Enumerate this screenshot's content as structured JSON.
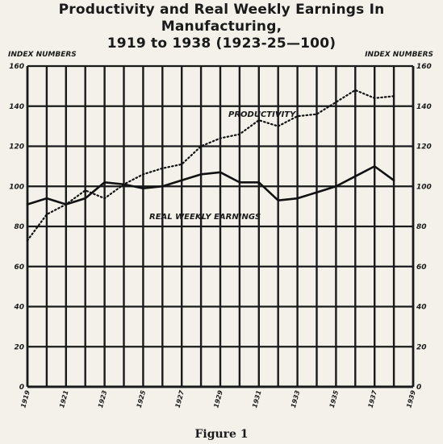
{
  "chart_data": {
    "type": "line",
    "title": "Productivity and Real Weekly Earnings In Manufacturing, 1919 to 1938 (1923-25—100)",
    "title_line1": "Productivity and Real Weekly Earnings In Manufacturing,",
    "title_line2": "1919 to 1938 (1923-25—100)",
    "ylabel_left": "INDEX NUMBERS",
    "ylabel_right": "INDEX NUMBERS",
    "ylim": [
      0,
      160
    ],
    "yticks": [
      0,
      20,
      40,
      60,
      80,
      100,
      120,
      140,
      160
    ],
    "xlim": [
      1919,
      1939
    ],
    "xticks": [
      "1919",
      "1921",
      "1923",
      "1925",
      "1927",
      "1929",
      "1931",
      "1933",
      "1935",
      "1937",
      "1939"
    ],
    "grid": true,
    "x": [
      1919,
      1920,
      1921,
      1922,
      1923,
      1924,
      1925,
      1926,
      1927,
      1928,
      1929,
      1930,
      1931,
      1932,
      1933,
      1934,
      1935,
      1936,
      1937,
      1938
    ],
    "series": [
      {
        "name": "PRODUCTIVITY",
        "style": "dotted",
        "values": [
          73,
          86,
          91,
          98,
          94,
          101,
          106,
          109,
          111,
          120,
          124,
          126,
          133,
          130,
          135,
          136,
          142,
          148,
          144,
          145
        ]
      },
      {
        "name": "REAL WEEKLY EARNINGS",
        "style": "solid",
        "values": [
          91,
          94,
          91,
          94,
          102,
          101,
          99,
          100,
          103,
          106,
          107,
          102,
          102,
          93,
          94,
          97,
          100,
          105,
          110,
          103
        ]
      }
    ],
    "caption": "Figure 1"
  }
}
